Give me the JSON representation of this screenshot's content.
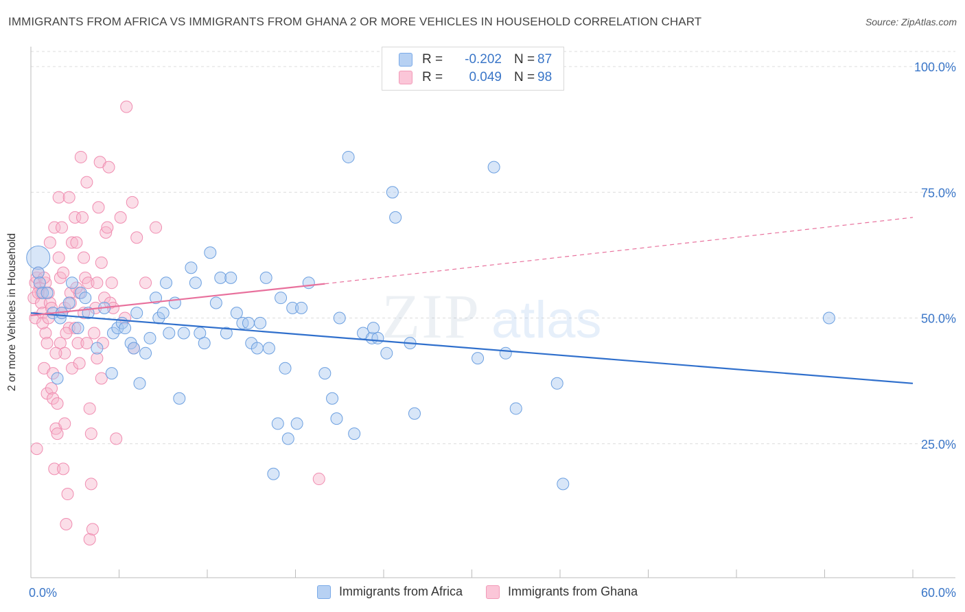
{
  "title": "IMMIGRANTS FROM AFRICA VS IMMIGRANTS FROM GHANA 2 OR MORE VEHICLES IN HOUSEHOLD CORRELATION CHART",
  "source": "Source: ZipAtlas.com",
  "watermark": {
    "part1": "ZIP",
    "part2": "atlas"
  },
  "legend_top": {
    "rows": [
      {
        "label": "R =",
        "r": "-0.202",
        "n_label": "N =",
        "n": "87"
      },
      {
        "label": "R =",
        "r": "0.049",
        "n_label": "N =",
        "n": "98"
      }
    ]
  },
  "chart_data": {
    "type": "scatter",
    "title": "IMMIGRANTS FROM AFRICA VS IMMIGRANTS FROM GHANA 2 OR MORE VEHICLES IN HOUSEHOLD CORRELATION CHART",
    "xlabel": "",
    "ylabel": "2 or more Vehicles in Household",
    "xlim": [
      0,
      60
    ],
    "ylim": [
      0,
      105
    ],
    "x_tick_labels": [
      "0.0%",
      "60.0%"
    ],
    "y_ticks": [
      25,
      50,
      75,
      100
    ],
    "y_tick_labels": [
      "25.0%",
      "50.0%",
      "75.0%",
      "100.0%"
    ],
    "grid": true,
    "colors": {
      "africa": "#7aaae8",
      "ghana": "#f29ab8",
      "africa_line": "#2f6fcc",
      "ghana_line": "#e8709c"
    },
    "series": [
      {
        "name": "Immigrants from Africa",
        "r": -0.202,
        "n": 87,
        "trend": {
          "x": [
            0,
            60
          ],
          "y": [
            51.0,
            37.0
          ],
          "style": "solid"
        },
        "points": [
          [
            0.5,
            62
          ],
          [
            0.5,
            59
          ],
          [
            0.6,
            57
          ],
          [
            0.8,
            55
          ],
          [
            1.1,
            55
          ],
          [
            1.5,
            51
          ],
          [
            1.8,
            38
          ],
          [
            2.0,
            50
          ],
          [
            2.1,
            51
          ],
          [
            2.6,
            53
          ],
          [
            2.8,
            57
          ],
          [
            3.2,
            48
          ],
          [
            3.4,
            55
          ],
          [
            3.7,
            54
          ],
          [
            3.9,
            51
          ],
          [
            4.5,
            44
          ],
          [
            5.0,
            52
          ],
          [
            5.5,
            39
          ],
          [
            5.6,
            47
          ],
          [
            5.9,
            48
          ],
          [
            6.2,
            49
          ],
          [
            6.4,
            48
          ],
          [
            6.8,
            45
          ],
          [
            7.0,
            44
          ],
          [
            7.2,
            51
          ],
          [
            7.4,
            37
          ],
          [
            7.8,
            43
          ],
          [
            8.1,
            46
          ],
          [
            8.5,
            54
          ],
          [
            8.7,
            50
          ],
          [
            9.0,
            51
          ],
          [
            9.2,
            57
          ],
          [
            9.4,
            47
          ],
          [
            9.8,
            53
          ],
          [
            10.1,
            34
          ],
          [
            10.4,
            47
          ],
          [
            10.9,
            60
          ],
          [
            11.2,
            57
          ],
          [
            11.5,
            47
          ],
          [
            11.8,
            45
          ],
          [
            12.2,
            63
          ],
          [
            12.6,
            53
          ],
          [
            12.9,
            58
          ],
          [
            13.3,
            47
          ],
          [
            13.6,
            58
          ],
          [
            14.0,
            51
          ],
          [
            14.4,
            49
          ],
          [
            14.8,
            49
          ],
          [
            15.0,
            45
          ],
          [
            15.4,
            44
          ],
          [
            15.6,
            49
          ],
          [
            16.0,
            58
          ],
          [
            16.2,
            44
          ],
          [
            16.5,
            19
          ],
          [
            16.8,
            29
          ],
          [
            17.0,
            54
          ],
          [
            17.3,
            40
          ],
          [
            17.5,
            26
          ],
          [
            17.8,
            52
          ],
          [
            18.1,
            29
          ],
          [
            18.4,
            52
          ],
          [
            18.9,
            57
          ],
          [
            20.0,
            39
          ],
          [
            20.5,
            34
          ],
          [
            20.8,
            30
          ],
          [
            21.0,
            50
          ],
          [
            21.6,
            82
          ],
          [
            22.0,
            27
          ],
          [
            22.6,
            47
          ],
          [
            23.2,
            46
          ],
          [
            23.3,
            48
          ],
          [
            23.6,
            46
          ],
          [
            24.2,
            43
          ],
          [
            24.6,
            75
          ],
          [
            24.8,
            70
          ],
          [
            25.8,
            45
          ],
          [
            26.1,
            31
          ],
          [
            30.4,
            42
          ],
          [
            31.5,
            80
          ],
          [
            32.3,
            43
          ],
          [
            33.0,
            32
          ],
          [
            35.8,
            37
          ],
          [
            36.2,
            17
          ],
          [
            54.3,
            50
          ]
        ],
        "sizes": {
          "0.5,62": 14
        }
      },
      {
        "name": "Immigrants from Ghana",
        "r": 0.049,
        "n": 98,
        "trend": {
          "x_solid": [
            0,
            20
          ],
          "y_solid": [
            50.5,
            56.8
          ],
          "x_dashed": [
            20,
            60
          ],
          "y_dashed": [
            56.8,
            70.0
          ]
        },
        "points": [
          [
            0.2,
            54
          ],
          [
            0.3,
            57
          ],
          [
            0.3,
            50
          ],
          [
            0.4,
            58
          ],
          [
            0.4,
            24
          ],
          [
            0.5,
            59
          ],
          [
            0.6,
            56
          ],
          [
            0.7,
            55
          ],
          [
            0.7,
            53
          ],
          [
            0.8,
            51
          ],
          [
            0.9,
            40
          ],
          [
            1.0,
            47
          ],
          [
            1.0,
            57
          ],
          [
            1.1,
            45
          ],
          [
            1.1,
            35
          ],
          [
            1.2,
            55
          ],
          [
            1.3,
            65
          ],
          [
            1.3,
            53
          ],
          [
            1.4,
            52
          ],
          [
            1.4,
            36
          ],
          [
            1.5,
            39
          ],
          [
            1.5,
            34
          ],
          [
            1.6,
            68
          ],
          [
            1.6,
            20
          ],
          [
            1.7,
            28
          ],
          [
            1.8,
            27
          ],
          [
            1.8,
            33
          ],
          [
            1.9,
            74
          ],
          [
            1.9,
            62
          ],
          [
            2.0,
            58
          ],
          [
            2.0,
            45
          ],
          [
            2.1,
            68
          ],
          [
            2.2,
            59
          ],
          [
            2.2,
            20
          ],
          [
            2.3,
            52
          ],
          [
            2.3,
            43
          ],
          [
            2.3,
            29
          ],
          [
            2.4,
            9
          ],
          [
            2.5,
            15
          ],
          [
            2.6,
            74
          ],
          [
            2.6,
            48
          ],
          [
            2.7,
            55
          ],
          [
            2.7,
            53
          ],
          [
            2.8,
            65
          ],
          [
            2.8,
            40
          ],
          [
            3.0,
            70
          ],
          [
            3.0,
            48
          ],
          [
            3.1,
            65
          ],
          [
            3.2,
            45
          ],
          [
            3.3,
            55
          ],
          [
            3.3,
            41
          ],
          [
            3.4,
            82
          ],
          [
            3.5,
            70
          ],
          [
            3.6,
            62
          ],
          [
            3.7,
            58
          ],
          [
            3.8,
            77
          ],
          [
            3.8,
            45
          ],
          [
            3.9,
            57
          ],
          [
            4.0,
            32
          ],
          [
            4.0,
            6
          ],
          [
            4.1,
            27
          ],
          [
            4.1,
            17
          ],
          [
            4.2,
            8
          ],
          [
            4.3,
            47
          ],
          [
            4.4,
            52
          ],
          [
            4.5,
            57
          ],
          [
            4.5,
            42
          ],
          [
            4.6,
            72
          ],
          [
            4.7,
            81
          ],
          [
            4.8,
            61
          ],
          [
            4.8,
            38
          ],
          [
            5.0,
            54
          ],
          [
            5.1,
            67
          ],
          [
            5.2,
            68
          ],
          [
            5.3,
            80
          ],
          [
            5.4,
            53
          ],
          [
            5.5,
            57
          ],
          [
            5.6,
            52
          ],
          [
            5.8,
            26
          ],
          [
            6.1,
            70
          ],
          [
            6.4,
            50
          ],
          [
            6.5,
            92
          ],
          [
            6.9,
            73
          ],
          [
            7.0,
            44
          ],
          [
            7.2,
            66
          ],
          [
            7.8,
            57
          ],
          [
            8.5,
            68
          ],
          [
            19.6,
            18
          ],
          [
            0.8,
            49
          ],
          [
            1.2,
            50
          ],
          [
            2.1,
            51
          ],
          [
            3.6,
            51
          ],
          [
            0.5,
            55
          ],
          [
            0.9,
            58
          ],
          [
            1.7,
            43
          ],
          [
            2.4,
            47
          ],
          [
            4.9,
            45
          ],
          [
            3.1,
            56
          ]
        ]
      }
    ]
  },
  "legend_bottom": {
    "africa": "Immigrants from Africa",
    "ghana": "Immigrants from Ghana"
  }
}
